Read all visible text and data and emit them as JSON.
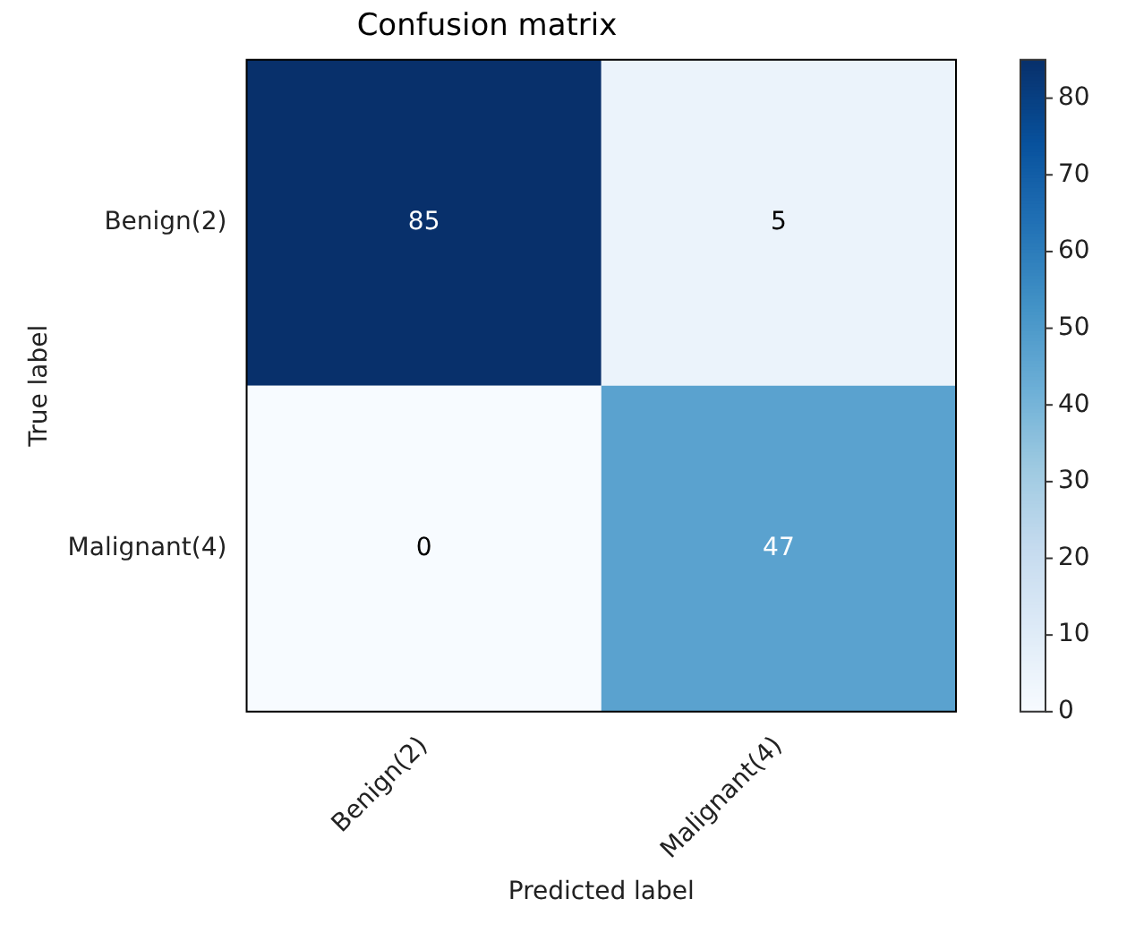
{
  "chart_data": {
    "type": "heatmap",
    "title": "Confusion matrix",
    "xlabel": "Predicted label",
    "ylabel": "True label",
    "categories": [
      "Benign(2)",
      "Malignant(4)"
    ],
    "y_categories": [
      "Benign(2)",
      "Malignant(4)"
    ],
    "cells": [
      [
        85,
        5
      ],
      [
        0,
        47
      ]
    ],
    "clim": [
      0,
      85
    ],
    "cticks": [
      0,
      10,
      20,
      30,
      40,
      50,
      60,
      70,
      80
    ],
    "data_labels": true
  }
}
